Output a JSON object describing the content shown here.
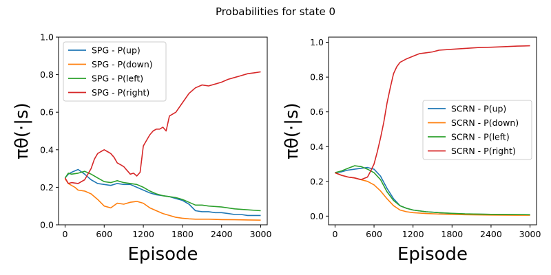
{
  "figure": {
    "suptitle": "Probabilities for state 0"
  },
  "chart_data": [
    {
      "type": "line",
      "xlabel": "Episode",
      "ylabel": "πθ(·|s)",
      "xlim": [
        -100,
        3100
      ],
      "ylim": [
        0.0,
        1.0
      ],
      "xticks": [
        0,
        600,
        1200,
        1800,
        2400,
        3000
      ],
      "yticks": [
        0.0,
        0.2,
        0.4,
        0.6,
        0.8,
        1.0
      ],
      "ytick_labels": [
        "0.0",
        "0.2",
        "0.4",
        "0.6",
        "0.8",
        "1.0"
      ],
      "legend_position": "upper-left",
      "series": [
        {
          "name": "SPG - P(up)",
          "color": "#1f77b4",
          "x": [
            0,
            50,
            100,
            200,
            300,
            400,
            500,
            600,
            700,
            800,
            900,
            1000,
            1100,
            1200,
            1300,
            1400,
            1500,
            1600,
            1700,
            1800,
            1900,
            2000,
            2100,
            2200,
            2300,
            2400,
            2500,
            2600,
            2700,
            2800,
            2900,
            3000
          ],
          "y": [
            0.25,
            0.27,
            0.28,
            0.295,
            0.27,
            0.24,
            0.22,
            0.215,
            0.21,
            0.22,
            0.215,
            0.215,
            0.2,
            0.185,
            0.17,
            0.16,
            0.155,
            0.15,
            0.14,
            0.13,
            0.11,
            0.075,
            0.07,
            0.07,
            0.065,
            0.065,
            0.06,
            0.055,
            0.055,
            0.05,
            0.05,
            0.05
          ]
        },
        {
          "name": "SPG - P(down)",
          "color": "#ff7f0e",
          "x": [
            0,
            50,
            100,
            150,
            200,
            300,
            400,
            500,
            600,
            700,
            800,
            900,
            1000,
            1100,
            1200,
            1300,
            1400,
            1500,
            1600,
            1700,
            1800,
            1900,
            2000,
            2200,
            2400,
            2600,
            2800,
            3000
          ],
          "y": [
            0.245,
            0.22,
            0.21,
            0.2,
            0.185,
            0.18,
            0.165,
            0.135,
            0.1,
            0.09,
            0.115,
            0.11,
            0.12,
            0.125,
            0.115,
            0.09,
            0.075,
            0.06,
            0.05,
            0.04,
            0.035,
            0.032,
            0.03,
            0.03,
            0.028,
            0.027,
            0.026,
            0.025
          ]
        },
        {
          "name": "SPG - P(left)",
          "color": "#2ca02c",
          "x": [
            0,
            50,
            100,
            200,
            300,
            400,
            500,
            600,
            700,
            800,
            900,
            1000,
            1100,
            1200,
            1300,
            1400,
            1500,
            1600,
            1700,
            1800,
            1900,
            2000,
            2100,
            2200,
            2400,
            2600,
            2800,
            3000
          ],
          "y": [
            0.25,
            0.275,
            0.27,
            0.275,
            0.285,
            0.27,
            0.25,
            0.23,
            0.225,
            0.235,
            0.225,
            0.22,
            0.215,
            0.2,
            0.18,
            0.165,
            0.155,
            0.15,
            0.145,
            0.135,
            0.12,
            0.105,
            0.105,
            0.1,
            0.095,
            0.085,
            0.08,
            0.075
          ]
        },
        {
          "name": "SPG - P(right)",
          "color": "#d62728",
          "x": [
            0,
            50,
            100,
            200,
            300,
            400,
            450,
            500,
            550,
            600,
            650,
            700,
            750,
            800,
            850,
            900,
            950,
            1000,
            1050,
            1100,
            1150,
            1200,
            1250,
            1300,
            1350,
            1400,
            1450,
            1500,
            1550,
            1600,
            1700,
            1800,
            1900,
            2000,
            2100,
            2200,
            2300,
            2400,
            2500,
            2600,
            2700,
            2800,
            2900,
            3000
          ],
          "y": [
            0.25,
            0.22,
            0.225,
            0.22,
            0.24,
            0.3,
            0.35,
            0.38,
            0.39,
            0.4,
            0.39,
            0.38,
            0.36,
            0.33,
            0.32,
            0.31,
            0.29,
            0.27,
            0.275,
            0.26,
            0.28,
            0.42,
            0.45,
            0.48,
            0.5,
            0.51,
            0.51,
            0.52,
            0.5,
            0.58,
            0.6,
            0.65,
            0.7,
            0.73,
            0.745,
            0.74,
            0.75,
            0.76,
            0.775,
            0.785,
            0.795,
            0.805,
            0.81,
            0.815
          ]
        }
      ]
    },
    {
      "type": "line",
      "xlabel": "Episode",
      "ylabel": "πθ(·|s)",
      "xlim": [
        -100,
        3100
      ],
      "ylim": [
        -0.05,
        1.03
      ],
      "xticks": [
        0,
        600,
        1200,
        1800,
        2400,
        3000
      ],
      "yticks": [
        0.0,
        0.2,
        0.4,
        0.6,
        0.8,
        1.0
      ],
      "ytick_labels": [
        "0.0",
        "0.2",
        "0.4",
        "0.6",
        "0.8",
        "1.0"
      ],
      "legend_position": "center-right",
      "series": [
        {
          "name": "SCRN - P(up)",
          "color": "#1f77b4",
          "x": [
            0,
            100,
            200,
            300,
            400,
            500,
            600,
            700,
            800,
            900,
            1000,
            1100,
            1200,
            1400,
            1600,
            1800,
            2000,
            2400,
            2800,
            3000
          ],
          "y": [
            0.25,
            0.255,
            0.265,
            0.27,
            0.275,
            0.28,
            0.27,
            0.23,
            0.16,
            0.1,
            0.06,
            0.045,
            0.035,
            0.025,
            0.02,
            0.015,
            0.012,
            0.01,
            0.008,
            0.007
          ]
        },
        {
          "name": "SCRN - P(down)",
          "color": "#ff7f0e",
          "x": [
            0,
            100,
            200,
            300,
            400,
            500,
            600,
            700,
            800,
            900,
            1000,
            1100,
            1200,
            1400,
            1600,
            1800,
            2000,
            2400,
            2800,
            3000
          ],
          "y": [
            0.25,
            0.235,
            0.225,
            0.22,
            0.21,
            0.2,
            0.18,
            0.145,
            0.1,
            0.06,
            0.035,
            0.025,
            0.02,
            0.015,
            0.012,
            0.01,
            0.008,
            0.006,
            0.005,
            0.005
          ]
        },
        {
          "name": "SCRN - P(left)",
          "color": "#2ca02c",
          "x": [
            0,
            100,
            200,
            300,
            400,
            500,
            600,
            700,
            800,
            900,
            1000,
            1100,
            1200,
            1400,
            1600,
            1800,
            2000,
            2400,
            2800,
            3000
          ],
          "y": [
            0.25,
            0.26,
            0.275,
            0.29,
            0.285,
            0.27,
            0.25,
            0.21,
            0.14,
            0.09,
            0.06,
            0.045,
            0.035,
            0.025,
            0.02,
            0.016,
            0.013,
            0.01,
            0.009,
            0.008
          ]
        },
        {
          "name": "SCRN - P(right)",
          "color": "#d62728",
          "x": [
            0,
            100,
            200,
            300,
            400,
            500,
            550,
            600,
            650,
            700,
            750,
            800,
            850,
            900,
            950,
            1000,
            1100,
            1200,
            1300,
            1400,
            1500,
            1600,
            1800,
            2000,
            2200,
            2400,
            2600,
            2800,
            3000
          ],
          "y": [
            0.25,
            0.235,
            0.225,
            0.22,
            0.21,
            0.225,
            0.26,
            0.3,
            0.37,
            0.45,
            0.54,
            0.65,
            0.74,
            0.82,
            0.86,
            0.885,
            0.905,
            0.92,
            0.935,
            0.94,
            0.945,
            0.955,
            0.96,
            0.965,
            0.97,
            0.972,
            0.975,
            0.978,
            0.98
          ]
        }
      ]
    }
  ]
}
